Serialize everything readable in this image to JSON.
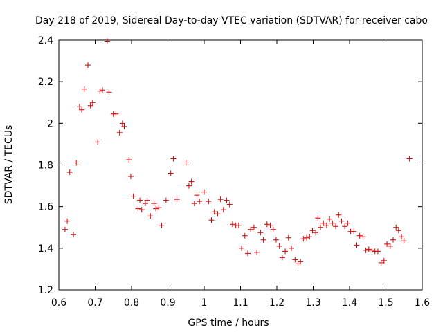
{
  "chart_data": {
    "type": "scatter",
    "title": "Day 218 of 2019, Sidereal Day-to-day VTEC variation (SDTVAR) for receiver cabo",
    "xlabel": "GPS time / hours",
    "ylabel": "SDTVAR / TECUs",
    "xlim": [
      0.6,
      1.6
    ],
    "ylim": [
      1.2,
      2.4
    ],
    "xticks": [
      0.6,
      0.7,
      0.8,
      0.9,
      1.0,
      1.1,
      1.2,
      1.3,
      1.4,
      1.5,
      1.6
    ],
    "xtick_labels": [
      "0.6",
      "0.7",
      "0.8",
      "0.9",
      "1",
      "1.1",
      "1.2",
      "1.3",
      "1.4",
      "1.5",
      "1.6"
    ],
    "yticks": [
      1.2,
      1.4,
      1.6,
      1.8,
      2.0,
      2.2,
      2.4
    ],
    "ytick_labels": [
      "1.2",
      "1.4",
      "1.6",
      "1.8",
      "2",
      "2.2",
      "2.4"
    ],
    "marker": "+",
    "color": "#cc0000",
    "grid": false,
    "series": [
      {
        "name": "SDTVAR",
        "points": [
          [
            0.617,
            1.49
          ],
          [
            0.623,
            1.53
          ],
          [
            0.63,
            1.765
          ],
          [
            0.64,
            1.465
          ],
          [
            0.648,
            1.81
          ],
          [
            0.657,
            2.08
          ],
          [
            0.663,
            2.065
          ],
          [
            0.67,
            2.165
          ],
          [
            0.68,
            2.28
          ],
          [
            0.687,
            2.085
          ],
          [
            0.693,
            2.1
          ],
          [
            0.707,
            1.91
          ],
          [
            0.713,
            2.155
          ],
          [
            0.72,
            2.16
          ],
          [
            0.733,
            2.395
          ],
          [
            0.738,
            2.15
          ],
          [
            0.75,
            2.045
          ],
          [
            0.757,
            2.045
          ],
          [
            0.767,
            1.955
          ],
          [
            0.775,
            2.0
          ],
          [
            0.78,
            1.985
          ],
          [
            0.793,
            1.825
          ],
          [
            0.798,
            1.745
          ],
          [
            0.805,
            1.65
          ],
          [
            0.818,
            1.59
          ],
          [
            0.823,
            1.63
          ],
          [
            0.828,
            1.585
          ],
          [
            0.838,
            1.615
          ],
          [
            0.843,
            1.63
          ],
          [
            0.852,
            1.555
          ],
          [
            0.862,
            1.615
          ],
          [
            0.867,
            1.59
          ],
          [
            0.875,
            1.595
          ],
          [
            0.883,
            1.51
          ],
          [
            0.895,
            1.63
          ],
          [
            0.908,
            1.76
          ],
          [
            0.915,
            1.83
          ],
          [
            0.925,
            1.635
          ],
          [
            0.95,
            1.81
          ],
          [
            0.958,
            1.7
          ],
          [
            0.965,
            1.72
          ],
          [
            0.973,
            1.615
          ],
          [
            0.98,
            1.655
          ],
          [
            0.987,
            1.625
          ],
          [
            1.0,
            1.67
          ],
          [
            1.012,
            1.625
          ],
          [
            1.02,
            1.535
          ],
          [
            1.028,
            1.575
          ],
          [
            1.037,
            1.565
          ],
          [
            1.045,
            1.635
          ],
          [
            1.053,
            1.585
          ],
          [
            1.062,
            1.63
          ],
          [
            1.07,
            1.61
          ],
          [
            1.078,
            1.515
          ],
          [
            1.087,
            1.51
          ],
          [
            1.095,
            1.51
          ],
          [
            1.103,
            1.4
          ],
          [
            1.112,
            1.46
          ],
          [
            1.12,
            1.375
          ],
          [
            1.128,
            1.49
          ],
          [
            1.137,
            1.5
          ],
          [
            1.145,
            1.38
          ],
          [
            1.155,
            1.475
          ],
          [
            1.163,
            1.44
          ],
          [
            1.173,
            1.515
          ],
          [
            1.182,
            1.51
          ],
          [
            1.19,
            1.49
          ],
          [
            1.198,
            1.44
          ],
          [
            1.207,
            1.41
          ],
          [
            1.215,
            1.355
          ],
          [
            1.223,
            1.385
          ],
          [
            1.232,
            1.45
          ],
          [
            1.24,
            1.4
          ],
          [
            1.25,
            1.345
          ],
          [
            1.258,
            1.325
          ],
          [
            1.265,
            1.335
          ],
          [
            1.273,
            1.445
          ],
          [
            1.282,
            1.45
          ],
          [
            1.29,
            1.455
          ],
          [
            1.298,
            1.485
          ],
          [
            1.307,
            1.475
          ],
          [
            1.313,
            1.545
          ],
          [
            1.32,
            1.5
          ],
          [
            1.328,
            1.52
          ],
          [
            1.337,
            1.51
          ],
          [
            1.345,
            1.54
          ],
          [
            1.353,
            1.52
          ],
          [
            1.362,
            1.505
          ],
          [
            1.37,
            1.56
          ],
          [
            1.378,
            1.53
          ],
          [
            1.387,
            1.505
          ],
          [
            1.395,
            1.52
          ],
          [
            1.403,
            1.48
          ],
          [
            1.412,
            1.48
          ],
          [
            1.42,
            1.415
          ],
          [
            1.428,
            1.46
          ],
          [
            1.437,
            1.455
          ],
          [
            1.445,
            1.39
          ],
          [
            1.453,
            1.395
          ],
          [
            1.462,
            1.39
          ],
          [
            1.47,
            1.385
          ],
          [
            1.478,
            1.385
          ],
          [
            1.487,
            1.33
          ],
          [
            1.495,
            1.34
          ],
          [
            1.503,
            1.42
          ],
          [
            1.512,
            1.41
          ],
          [
            1.52,
            1.44
          ],
          [
            1.528,
            1.5
          ],
          [
            1.535,
            1.485
          ],
          [
            1.543,
            1.455
          ],
          [
            1.55,
            1.435
          ],
          [
            1.565,
            1.83
          ]
        ]
      }
    ]
  }
}
